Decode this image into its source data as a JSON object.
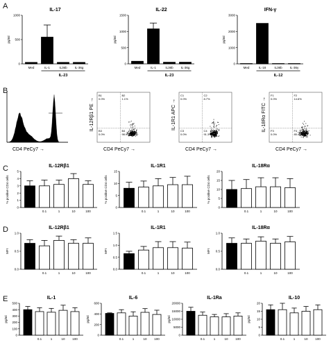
{
  "panel_letters": [
    "A",
    "B",
    "C",
    "D",
    "E"
  ],
  "chart_data": [
    {
      "id": "A1",
      "type": "bar",
      "title": "IL-17",
      "ylabel": "pg/ml",
      "categories": [
        "Med",
        "IL-1",
        "IL36b",
        "IL-36g"
      ],
      "group_label": "IL-23",
      "values": [
        30,
        550,
        30,
        30
      ],
      "errors": [
        0,
        250,
        0,
        0
      ],
      "ylim": [
        0,
        1000
      ],
      "yticks": [
        "0",
        "500",
        "1000"
      ]
    },
    {
      "id": "A2",
      "type": "bar",
      "title": "IL-22",
      "ylabel": "pg/ml",
      "categories": [
        "Med",
        "IL-1",
        "IL36b",
        "IL-36g"
      ],
      "group_label": "IL-23",
      "values": [
        80,
        1080,
        50,
        50
      ],
      "errors": [
        0,
        180,
        0,
        0
      ],
      "ylim": [
        0,
        1500
      ],
      "yticks": [
        "0",
        "500",
        "1000",
        "1500"
      ]
    },
    {
      "id": "A3",
      "type": "bar",
      "title": "IFN-γ",
      "ylabel": "pg/ml",
      "categories": [
        "Med",
        "IL-18",
        "IL36b",
        "IL-36γ"
      ],
      "group_label": "IL-12",
      "values": [
        20,
        2500,
        20,
        20
      ],
      "errors": [
        0,
        0,
        0,
        0
      ],
      "ylim": [
        0,
        3000
      ],
      "yticks": [
        "0",
        "1000",
        "2000",
        "3000"
      ]
    },
    {
      "id": "C1",
      "type": "bar",
      "title": "IL-12Rβ1",
      "ylabel": "% positive CD4 cells",
      "categories": [
        "",
        "0.1",
        "1",
        "10",
        "100"
      ],
      "values": [
        3,
        3,
        3.2,
        4,
        3.2
      ],
      "errors": [
        0.7,
        0.8,
        0.6,
        0.7,
        0.5
      ],
      "ylim": [
        0,
        5
      ],
      "yticks": [
        "0",
        "1",
        "2",
        "3",
        "4",
        "5"
      ]
    },
    {
      "id": "C2",
      "type": "bar",
      "title": "IL-1R1",
      "ylabel": "% positive CD4 cells",
      "categories": [
        "",
        "0.1",
        "1",
        "10",
        "100"
      ],
      "values": [
        8,
        8.5,
        9,
        9.5,
        9.5
      ],
      "errors": [
        2.5,
        2.5,
        3,
        3,
        3.5
      ],
      "ylim": [
        0,
        15
      ],
      "yticks": [
        "0",
        "5",
        "10",
        "15"
      ]
    },
    {
      "id": "C3",
      "type": "bar",
      "title": "IL-18Rα",
      "ylabel": "% positive CD4 cells",
      "categories": [
        "",
        "0.1",
        "1",
        "10",
        "100"
      ],
      "values": [
        10,
        10.5,
        11.5,
        11.5,
        11
      ],
      "errors": [
        5,
        5,
        5,
        5,
        5
      ],
      "ylim": [
        0,
        20
      ],
      "yticks": [
        "0",
        "5",
        "10",
        "15",
        "20"
      ]
    },
    {
      "id": "D1",
      "type": "bar",
      "title": "IL-12Rβ1",
      "ylabel": "MFI",
      "categories": [
        "",
        "0.1",
        "1",
        "10",
        "100"
      ],
      "values": [
        0.72,
        0.65,
        0.8,
        0.72,
        0.72
      ],
      "errors": [
        0.1,
        0.15,
        0.12,
        0.1,
        0.15
      ],
      "ylim": [
        0,
        1
      ],
      "yticks": [
        "0.0",
        "0.5",
        "1.0"
      ]
    },
    {
      "id": "D2",
      "type": "bar",
      "title": "IL-1R1",
      "ylabel": "MFI",
      "categories": [
        "",
        "0.1",
        "1",
        "10",
        "100"
      ],
      "values": [
        0.65,
        0.8,
        0.9,
        0.9,
        0.88
      ],
      "errors": [
        0.1,
        0.15,
        0.25,
        0.25,
        0.25
      ],
      "ylim": [
        0,
        1.5
      ],
      "yticks": [
        "0.0",
        "0.5",
        "1.0",
        "1.5"
      ]
    },
    {
      "id": "D3",
      "type": "bar",
      "title": "IL-18Rα",
      "ylabel": "MFI",
      "categories": [
        "",
        "0.1",
        "1",
        "10",
        "100"
      ],
      "values": [
        0.72,
        0.72,
        0.78,
        0.72,
        0.76
      ],
      "errors": [
        0.15,
        0.12,
        0.12,
        0.12,
        0.15
      ],
      "ylim": [
        0,
        1
      ],
      "yticks": [
        "0.0",
        "0.5",
        "1.0"
      ]
    },
    {
      "id": "E1",
      "type": "bar",
      "title": "IL-1",
      "ylabel": "pg/ml",
      "categories": [
        "",
        "0.1",
        "1",
        "10",
        "100"
      ],
      "values": [
        400,
        370,
        360,
        390,
        370
      ],
      "errors": [
        50,
        60,
        60,
        80,
        60
      ],
      "ylim": [
        0,
        500
      ],
      "yticks": [
        "0",
        "100",
        "200",
        "300",
        "400",
        "500"
      ]
    },
    {
      "id": "E2",
      "type": "bar",
      "title": "IL-6",
      "ylabel": "pg/ml",
      "categories": [
        "",
        "0.1",
        "1",
        "10",
        "100"
      ],
      "values": [
        410,
        420,
        360,
        430,
        390
      ],
      "errors": [
        10,
        60,
        80,
        70,
        80
      ],
      "ylim": [
        0,
        600
      ],
      "yticks": [
        "0",
        "200",
        "400",
        "600"
      ]
    },
    {
      "id": "E3",
      "type": "bar",
      "title": "IL-1Ra",
      "ylabel": "pg/ml",
      "categories": [
        "",
        "0.1",
        "1",
        "10",
        "100"
      ],
      "values": [
        15000,
        12500,
        11500,
        11500,
        12000
      ],
      "errors": [
        2500,
        2000,
        1500,
        2000,
        2000
      ],
      "ylim": [
        0,
        20000
      ],
      "yticks": [
        "0",
        "5000",
        "10000",
        "15000",
        "20000"
      ]
    },
    {
      "id": "E4",
      "type": "bar",
      "title": "IL-10",
      "ylabel": "pg/ml",
      "categories": [
        "",
        "0.1",
        "1",
        "10",
        "100"
      ],
      "values": [
        16,
        16,
        14,
        15,
        16
      ],
      "errors": [
        3,
        4,
        3,
        3,
        3
      ],
      "ylim": [
        0,
        20
      ],
      "yticks": [
        "0",
        "5",
        "10",
        "15",
        "20"
      ]
    }
  ],
  "flow": {
    "histogram_xlabel": "CD4 PeCy7 →",
    "plots": [
      {
        "ylabel": "IL-12Rβ1 PE →",
        "xlabel": "CD4 PeCy7 →",
        "quadrants": [
          {
            "name": "B1",
            "value": "0.0%"
          },
          {
            "name": "B2",
            "value": "1.1%"
          },
          {
            "name": "B3",
            "value": "0.0%"
          },
          {
            "name": "B4",
            "value": "98.9%"
          }
        ]
      },
      {
        "ylabel": "IL-1R1 APC →",
        "xlabel": "CD4 PeCy7 →",
        "quadrants": [
          {
            "name": "C1",
            "value": "0.0%"
          },
          {
            "name": "C2",
            "value": "8.7%"
          },
          {
            "name": "C3",
            "value": "0.0%"
          },
          {
            "name": "C4",
            "value": "91.3%"
          }
        ]
      },
      {
        "ylabel": "IL-18Rα FITC →",
        "xlabel": "CD4 PeCy7 →",
        "quadrants": [
          {
            "name": "F1",
            "value": "0.0%"
          },
          {
            "name": "F2",
            "value": "14.6%"
          },
          {
            "name": "F3",
            "value": "0.0%"
          },
          {
            "name": "F4",
            "value": "85.4%"
          }
        ]
      }
    ]
  }
}
